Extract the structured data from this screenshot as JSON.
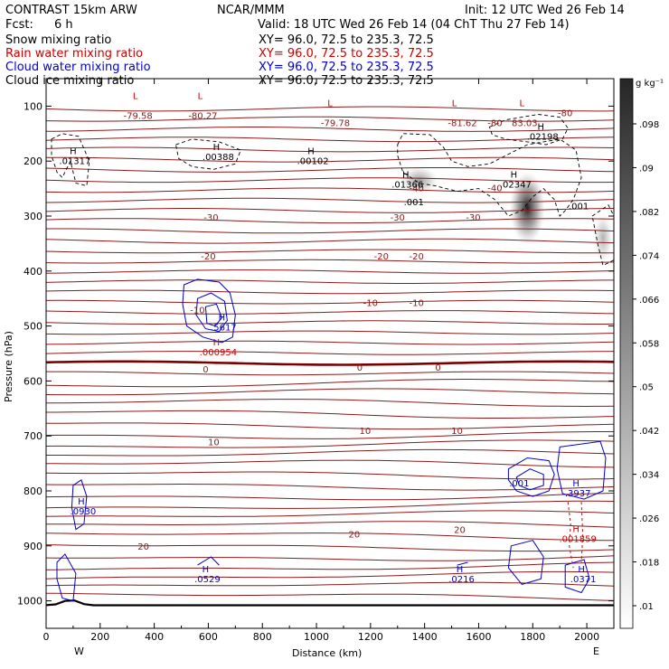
{
  "header": {
    "title_left": "CONTRAST 15km ARW",
    "title_center": "NCAR/MMM",
    "init": "Init: 12 UTC Wed 26 Feb 14",
    "fcst_label": "Fcst:",
    "fcst_value": "6 h",
    "valid": "Valid: 18 UTC Wed 26 Feb 14 (04 ChT Thu 27 Feb 14)"
  },
  "legend": [
    {
      "label": "Snow mixing ratio",
      "xy": "XY=  96.0, 72.5 to 235.3, 72.5",
      "color": "#000000"
    },
    {
      "label": "Rain water mixing ratio",
      "xy": "XY=  96.0, 72.5 to 235.3, 72.5",
      "color": "#cc0000"
    },
    {
      "label": "Cloud water mixing ratio",
      "xy": "XY=  96.0, 72.5 to 235.3, 72.5",
      "color": "#0000cc"
    },
    {
      "label": "Cloud ice mixing ratio",
      "xy": "XY=  96.0, 72.5 to 235.3, 72.5",
      "color": "#000000"
    }
  ],
  "chart_data": {
    "type": "cross-section contour",
    "xlabel": "Distance (km)",
    "ylabel": "Pressure (hPa)",
    "xlim": [
      0,
      2100
    ],
    "ylim": [
      1050,
      50
    ],
    "x_ticks": [
      "0",
      "200",
      "400",
      "600",
      "800",
      "1000",
      "1200",
      "1400",
      "1600",
      "1800",
      "2000"
    ],
    "y_ticks": [
      "100",
      "200",
      "300",
      "400",
      "500",
      "600",
      "700",
      "800",
      "900",
      "1000"
    ],
    "x_end_labels": {
      "left": "W",
      "right": "E"
    },
    "colorbar": {
      "unit": "g kg⁻¹",
      "ticks": [
        ".098",
        ".09",
        ".082",
        ".074",
        ".066",
        ".058",
        ".05",
        ".042",
        ".034",
        ".026",
        ".018",
        ".01"
      ]
    },
    "isotherm_labels": [
      {
        "x": 340,
        "p": 117,
        "text": "-79.58"
      },
      {
        "x": 580,
        "p": 117,
        "text": "-80.27"
      },
      {
        "x": 1070,
        "p": 130,
        "text": "-79.78"
      },
      {
        "x": 1540,
        "p": 130,
        "text": "-81.62"
      },
      {
        "x": 1660,
        "p": 130,
        "text": "-80"
      },
      {
        "x": 1920,
        "p": 112,
        "text": "-80"
      },
      {
        "x": 1770,
        "p": 130,
        "text": "83.03"
      },
      {
        "x": 1370,
        "p": 248,
        "text": "-40"
      },
      {
        "x": 1660,
        "p": 248,
        "text": "-40"
      },
      {
        "x": 610,
        "p": 302,
        "text": "-30"
      },
      {
        "x": 1300,
        "p": 302,
        "text": "-30"
      },
      {
        "x": 1580,
        "p": 302,
        "text": "-30"
      },
      {
        "x": 600,
        "p": 372,
        "text": "-20"
      },
      {
        "x": 1240,
        "p": 372,
        "text": "-20"
      },
      {
        "x": 1370,
        "p": 372,
        "text": "-20"
      },
      {
        "x": 560,
        "p": 470,
        "text": "-10"
      },
      {
        "x": 1200,
        "p": 457,
        "text": "-10"
      },
      {
        "x": 1370,
        "p": 457,
        "text": "-10"
      },
      {
        "x": 590,
        "p": 578,
        "text": "0"
      },
      {
        "x": 1160,
        "p": 575,
        "text": "0"
      },
      {
        "x": 1450,
        "p": 575,
        "text": "0"
      },
      {
        "x": 620,
        "p": 710,
        "text": "10"
      },
      {
        "x": 1180,
        "p": 690,
        "text": "10"
      },
      {
        "x": 1520,
        "p": 690,
        "text": "10"
      },
      {
        "x": 1140,
        "p": 878,
        "text": "20"
      },
      {
        "x": 1530,
        "p": 870,
        "text": "20"
      },
      {
        "x": 360,
        "p": 900,
        "text": "20"
      }
    ],
    "extrema": [
      {
        "x": 100,
        "p": 187,
        "mark": "H",
        "value": ".01317",
        "color": "#000000"
      },
      {
        "x": 630,
        "p": 180,
        "mark": "H",
        "value": ".00388",
        "color": "#000000"
      },
      {
        "x": 980,
        "p": 187,
        "mark": "H",
        "value": ".00102",
        "color": "#000000"
      },
      {
        "x": 1330,
        "p": 230,
        "mark": "H",
        "value": ".01366",
        "color": "#000000"
      },
      {
        "x": 1730,
        "p": 230,
        "mark": "H",
        "value": ".02347",
        "color": "#000000"
      },
      {
        "x": 1830,
        "p": 143,
        "mark": "H",
        "value": ".02198",
        "color": "#000000"
      },
      {
        "x": 330,
        "p": 87,
        "mark": "L",
        "value": "",
        "color": "#cc0000"
      },
      {
        "x": 570,
        "p": 87,
        "mark": "L",
        "value": "",
        "color": "#cc0000"
      },
      {
        "x": 1050,
        "p": 100,
        "mark": "L",
        "value": "",
        "color": "#cc0000"
      },
      {
        "x": 1510,
        "p": 100,
        "mark": "L",
        "value": "",
        "color": "#cc0000"
      },
      {
        "x": 1760,
        "p": 100,
        "mark": "L",
        "value": "",
        "color": "#cc0000"
      },
      {
        "x": 650,
        "p": 490,
        "mark": "H",
        "value": ".5617",
        "color": "#0000cc"
      },
      {
        "x": 630,
        "p": 535,
        "mark": "H",
        "value": ".000954",
        "color": "#cc0000"
      },
      {
        "x": 130,
        "p": 825,
        "mark": "H",
        "value": ".0930",
        "color": "#0000cc"
      },
      {
        "x": 590,
        "p": 948,
        "mark": "H",
        "value": ".0529",
        "color": "#0000cc"
      },
      {
        "x": 1530,
        "p": 948,
        "mark": "H",
        "value": ".0216",
        "color": "#0000cc"
      },
      {
        "x": 1960,
        "p": 792,
        "mark": "H",
        "value": ".3937",
        "color": "#0000cc"
      },
      {
        "x": 1960,
        "p": 875,
        "mark": "H",
        "value": ".001859",
        "color": "#cc0000"
      },
      {
        "x": 1980,
        "p": 948,
        "mark": "H",
        "value": ".0371",
        "color": "#0000cc"
      }
    ],
    "small_labels": [
      {
        "x": 1360,
        "p": 280,
        "text": ".001",
        "color": "#000000"
      },
      {
        "x": 1970,
        "p": 288,
        "text": ".001",
        "color": "#000000"
      },
      {
        "x": 1750,
        "p": 792,
        "text": ".001",
        "color": "#0000cc"
      }
    ],
    "snow_blobs": [
      {
        "x": 1380,
        "p": 235,
        "rx": 70,
        "rp": 25,
        "intensity": 0.45
      },
      {
        "x": 1780,
        "p": 285,
        "rx": 65,
        "rp": 65,
        "intensity": 1.0
      },
      {
        "x": 2060,
        "p": 340,
        "rx": 35,
        "rp": 45,
        "intensity": 0.35
      }
    ]
  }
}
